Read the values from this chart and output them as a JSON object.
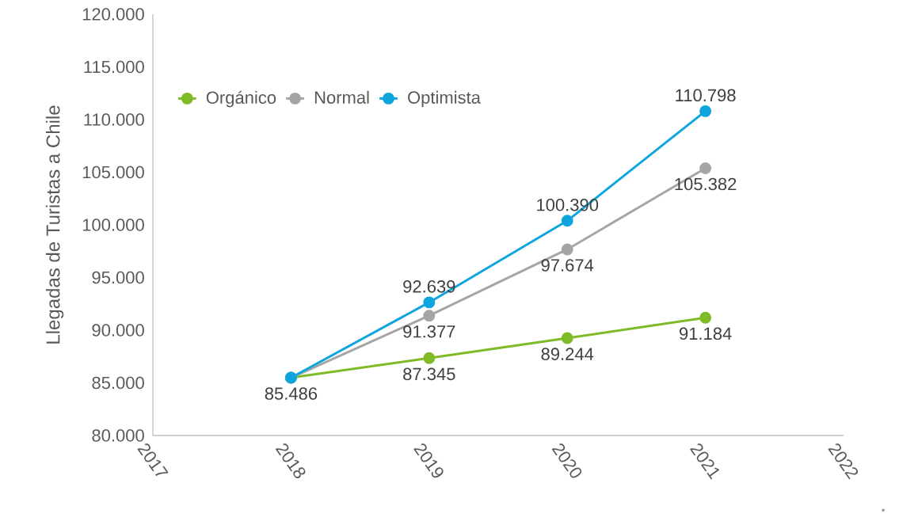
{
  "chart_data": {
    "type": "line",
    "ylabel": "Llegadas de Turistas a Chile",
    "x": [
      2018,
      2019,
      2020,
      2021
    ],
    "xlim": [
      2017,
      2022
    ],
    "xticks": [
      2017,
      2018,
      2019,
      2020,
      2021,
      2022
    ],
    "ylim": [
      80000,
      120000
    ],
    "yticks": [
      {
        "value": 80000,
        "label": "80.000"
      },
      {
        "value": 85000,
        "label": "85.000"
      },
      {
        "value": 90000,
        "label": "90.000"
      },
      {
        "value": 95000,
        "label": "95.000"
      },
      {
        "value": 100000,
        "label": "100.000"
      },
      {
        "value": 105000,
        "label": "105.000"
      },
      {
        "value": 110000,
        "label": "110.000"
      },
      {
        "value": 115000,
        "label": "115.000"
      },
      {
        "value": 120000,
        "label": "120.000"
      }
    ],
    "series": [
      {
        "name": "Orgánico",
        "color": "#7fba27",
        "values": [
          85486,
          87345,
          89244,
          91184
        ],
        "value_labels": [
          "85.486",
          "87.345",
          "89.244",
          "91.184"
        ]
      },
      {
        "name": "Normal",
        "color": "#a5a5a5",
        "values": [
          85486,
          91377,
          97674,
          105382
        ],
        "value_labels": [
          null,
          "91.377",
          "97.674",
          "105.382"
        ]
      },
      {
        "name": "Optimista",
        "color": "#0ea5de",
        "values": [
          85486,
          92639,
          100390,
          110798
        ],
        "value_labels": [
          null,
          "92.639",
          "100.390",
          "110.798"
        ]
      }
    ],
    "marker": "circle",
    "line_style": "solid",
    "legend": "top left",
    "annotations": [
      "*"
    ]
  }
}
